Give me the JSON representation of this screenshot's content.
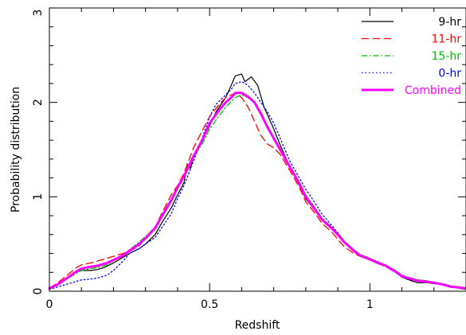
{
  "chart_data": {
    "type": "line",
    "title": "",
    "xlabel": "Redshift",
    "ylabel": "Probability distribution",
    "xlim": [
      0,
      1.3
    ],
    "ylim": [
      0,
      3
    ],
    "xticks": [
      0,
      0.5,
      1
    ],
    "xtick_labels": [
      "0",
      "0.5",
      "1"
    ],
    "yticks": [
      0,
      1,
      2,
      3
    ],
    "ytick_labels": [
      "0",
      "1",
      "2",
      "3"
    ],
    "grid": false,
    "legend_position": "top-right",
    "series": [
      {
        "name": "9-hr",
        "color": "#000000",
        "dash": "solid",
        "points": [
          [
            0,
            0.03
          ],
          [
            0.03,
            0.08
          ],
          [
            0.06,
            0.15
          ],
          [
            0.08,
            0.2
          ],
          [
            0.1,
            0.22
          ],
          [
            0.13,
            0.22
          ],
          [
            0.15,
            0.23
          ],
          [
            0.17,
            0.25
          ],
          [
            0.2,
            0.3
          ],
          [
            0.23,
            0.36
          ],
          [
            0.25,
            0.4
          ],
          [
            0.28,
            0.45
          ],
          [
            0.3,
            0.5
          ],
          [
            0.33,
            0.6
          ],
          [
            0.35,
            0.72
          ],
          [
            0.38,
            0.88
          ],
          [
            0.4,
            1.02
          ],
          [
            0.42,
            1.15
          ],
          [
            0.43,
            1.35
          ],
          [
            0.44,
            1.3
          ],
          [
            0.45,
            1.42
          ],
          [
            0.47,
            1.55
          ],
          [
            0.5,
            1.75
          ],
          [
            0.52,
            1.9
          ],
          [
            0.55,
            2.05
          ],
          [
            0.57,
            2.2
          ],
          [
            0.58,
            2.28
          ],
          [
            0.6,
            2.3
          ],
          [
            0.61,
            2.22
          ],
          [
            0.63,
            2.27
          ],
          [
            0.65,
            2.18
          ],
          [
            0.67,
            1.95
          ],
          [
            0.7,
            1.72
          ],
          [
            0.72,
            1.55
          ],
          [
            0.75,
            1.32
          ],
          [
            0.78,
            1.12
          ],
          [
            0.8,
            0.98
          ],
          [
            0.83,
            0.85
          ],
          [
            0.85,
            0.76
          ],
          [
            0.88,
            0.67
          ],
          [
            0.9,
            0.6
          ],
          [
            0.92,
            0.52
          ],
          [
            0.95,
            0.42
          ],
          [
            0.97,
            0.37
          ],
          [
            1.0,
            0.33
          ],
          [
            1.02,
            0.3
          ],
          [
            1.05,
            0.27
          ],
          [
            1.08,
            0.2
          ],
          [
            1.1,
            0.15
          ],
          [
            1.13,
            0.11
          ],
          [
            1.15,
            0.09
          ],
          [
            1.18,
            0.09
          ],
          [
            1.2,
            0.08
          ],
          [
            1.23,
            0.07
          ],
          [
            1.25,
            0.05
          ],
          [
            1.28,
            0.03
          ],
          [
            1.3,
            0.02
          ]
        ]
      },
      {
        "name": "11-hr",
        "color": "#ff0000",
        "dash": "dashed",
        "points": [
          [
            0,
            0.03
          ],
          [
            0.03,
            0.1
          ],
          [
            0.06,
            0.18
          ],
          [
            0.08,
            0.24
          ],
          [
            0.1,
            0.28
          ],
          [
            0.13,
            0.3
          ],
          [
            0.15,
            0.32
          ],
          [
            0.18,
            0.35
          ],
          [
            0.2,
            0.37
          ],
          [
            0.23,
            0.4
          ],
          [
            0.25,
            0.42
          ],
          [
            0.28,
            0.48
          ],
          [
            0.3,
            0.56
          ],
          [
            0.33,
            0.68
          ],
          [
            0.35,
            0.82
          ],
          [
            0.38,
            1.02
          ],
          [
            0.4,
            1.12
          ],
          [
            0.42,
            1.25
          ],
          [
            0.45,
            1.52
          ],
          [
            0.48,
            1.72
          ],
          [
            0.5,
            1.85
          ],
          [
            0.53,
            1.98
          ],
          [
            0.55,
            2.05
          ],
          [
            0.58,
            2.1
          ],
          [
            0.6,
            2.05
          ],
          [
            0.62,
            1.95
          ],
          [
            0.64,
            1.8
          ],
          [
            0.66,
            1.65
          ],
          [
            0.68,
            1.56
          ],
          [
            0.7,
            1.52
          ],
          [
            0.72,
            1.45
          ],
          [
            0.75,
            1.28
          ],
          [
            0.78,
            1.1
          ],
          [
            0.8,
            0.95
          ],
          [
            0.83,
            0.82
          ],
          [
            0.85,
            0.72
          ],
          [
            0.88,
            0.63
          ],
          [
            0.9,
            0.55
          ],
          [
            0.92,
            0.47
          ],
          [
            0.95,
            0.4
          ],
          [
            0.97,
            0.37
          ],
          [
            1.0,
            0.33
          ],
          [
            1.02,
            0.3
          ],
          [
            1.05,
            0.26
          ],
          [
            1.08,
            0.2
          ],
          [
            1.1,
            0.16
          ],
          [
            1.13,
            0.13
          ],
          [
            1.15,
            0.12
          ],
          [
            1.18,
            0.11
          ],
          [
            1.2,
            0.09
          ],
          [
            1.23,
            0.07
          ],
          [
            1.25,
            0.05
          ],
          [
            1.28,
            0.04
          ],
          [
            1.3,
            0.03
          ]
        ]
      },
      {
        "name": "15-hr",
        "color": "#00c000",
        "dash": "dashdot",
        "points": [
          [
            0,
            0.03
          ],
          [
            0.03,
            0.08
          ],
          [
            0.06,
            0.14
          ],
          [
            0.08,
            0.18
          ],
          [
            0.1,
            0.22
          ],
          [
            0.13,
            0.24
          ],
          [
            0.15,
            0.25
          ],
          [
            0.18,
            0.28
          ],
          [
            0.2,
            0.32
          ],
          [
            0.23,
            0.38
          ],
          [
            0.25,
            0.44
          ],
          [
            0.28,
            0.52
          ],
          [
            0.3,
            0.58
          ],
          [
            0.33,
            0.68
          ],
          [
            0.35,
            0.8
          ],
          [
            0.38,
            0.98
          ],
          [
            0.4,
            1.1
          ],
          [
            0.42,
            1.22
          ],
          [
            0.45,
            1.42
          ],
          [
            0.48,
            1.58
          ],
          [
            0.5,
            1.72
          ],
          [
            0.53,
            1.86
          ],
          [
            0.55,
            1.95
          ],
          [
            0.58,
            2.05
          ],
          [
            0.6,
            2.08
          ],
          [
            0.62,
            2.05
          ],
          [
            0.64,
            2.0
          ],
          [
            0.66,
            1.9
          ],
          [
            0.68,
            1.75
          ],
          [
            0.7,
            1.62
          ],
          [
            0.72,
            1.5
          ],
          [
            0.75,
            1.32
          ],
          [
            0.78,
            1.15
          ],
          [
            0.8,
            1.02
          ],
          [
            0.83,
            0.88
          ],
          [
            0.85,
            0.78
          ],
          [
            0.88,
            0.68
          ],
          [
            0.9,
            0.6
          ],
          [
            0.92,
            0.52
          ],
          [
            0.95,
            0.43
          ],
          [
            0.97,
            0.38
          ],
          [
            1.0,
            0.34
          ],
          [
            1.02,
            0.31
          ],
          [
            1.05,
            0.27
          ],
          [
            1.08,
            0.21
          ],
          [
            1.1,
            0.17
          ],
          [
            1.13,
            0.14
          ],
          [
            1.15,
            0.12
          ],
          [
            1.18,
            0.11
          ],
          [
            1.2,
            0.09
          ],
          [
            1.23,
            0.08
          ],
          [
            1.25,
            0.06
          ],
          [
            1.28,
            0.04
          ],
          [
            1.3,
            0.03
          ]
        ]
      },
      {
        "name": "0-hr",
        "color": "#0000ff",
        "dash": "dotted",
        "points": [
          [
            0,
            0.02
          ],
          [
            0.03,
            0.05
          ],
          [
            0.06,
            0.08
          ],
          [
            0.08,
            0.1
          ],
          [
            0.1,
            0.12
          ],
          [
            0.13,
            0.13
          ],
          [
            0.15,
            0.14
          ],
          [
            0.18,
            0.17
          ],
          [
            0.2,
            0.22
          ],
          [
            0.23,
            0.32
          ],
          [
            0.25,
            0.4
          ],
          [
            0.28,
            0.45
          ],
          [
            0.3,
            0.5
          ],
          [
            0.33,
            0.57
          ],
          [
            0.35,
            0.67
          ],
          [
            0.38,
            0.82
          ],
          [
            0.4,
            0.98
          ],
          [
            0.42,
            1.12
          ],
          [
            0.45,
            1.38
          ],
          [
            0.48,
            1.65
          ],
          [
            0.5,
            1.85
          ],
          [
            0.52,
            1.98
          ],
          [
            0.55,
            2.08
          ],
          [
            0.57,
            2.15
          ],
          [
            0.58,
            2.2
          ],
          [
            0.6,
            2.22
          ],
          [
            0.62,
            2.18
          ],
          [
            0.64,
            2.1
          ],
          [
            0.66,
            2.0
          ],
          [
            0.68,
            1.9
          ],
          [
            0.7,
            1.78
          ],
          [
            0.72,
            1.62
          ],
          [
            0.75,
            1.38
          ],
          [
            0.78,
            1.2
          ],
          [
            0.8,
            1.08
          ],
          [
            0.83,
            0.93
          ],
          [
            0.85,
            0.82
          ],
          [
            0.88,
            0.7
          ],
          [
            0.9,
            0.62
          ],
          [
            0.92,
            0.53
          ],
          [
            0.95,
            0.44
          ],
          [
            0.97,
            0.38
          ],
          [
            1.0,
            0.34
          ],
          [
            1.02,
            0.3
          ],
          [
            1.05,
            0.26
          ],
          [
            1.08,
            0.2
          ],
          [
            1.1,
            0.15
          ],
          [
            1.13,
            0.12
          ],
          [
            1.15,
            0.11
          ],
          [
            1.18,
            0.1
          ],
          [
            1.2,
            0.09
          ],
          [
            1.23,
            0.07
          ],
          [
            1.25,
            0.05
          ],
          [
            1.28,
            0.04
          ],
          [
            1.3,
            0.03
          ]
        ]
      },
      {
        "name": "Combined",
        "color": "#ff00ff",
        "dash": "solid-thick",
        "points": [
          [
            0,
            0.03
          ],
          [
            0.03,
            0.08
          ],
          [
            0.06,
            0.15
          ],
          [
            0.08,
            0.2
          ],
          [
            0.1,
            0.24
          ],
          [
            0.13,
            0.26
          ],
          [
            0.15,
            0.27
          ],
          [
            0.18,
            0.3
          ],
          [
            0.2,
            0.33
          ],
          [
            0.23,
            0.38
          ],
          [
            0.25,
            0.43
          ],
          [
            0.28,
            0.5
          ],
          [
            0.3,
            0.56
          ],
          [
            0.33,
            0.67
          ],
          [
            0.35,
            0.79
          ],
          [
            0.38,
            0.96
          ],
          [
            0.4,
            1.1
          ],
          [
            0.42,
            1.22
          ],
          [
            0.45,
            1.43
          ],
          [
            0.48,
            1.62
          ],
          [
            0.5,
            1.78
          ],
          [
            0.53,
            1.92
          ],
          [
            0.55,
            2.0
          ],
          [
            0.57,
            2.06
          ],
          [
            0.58,
            2.1
          ],
          [
            0.6,
            2.1
          ],
          [
            0.62,
            2.06
          ],
          [
            0.64,
            2.0
          ],
          [
            0.66,
            1.88
          ],
          [
            0.68,
            1.74
          ],
          [
            0.7,
            1.62
          ],
          [
            0.72,
            1.5
          ],
          [
            0.75,
            1.32
          ],
          [
            0.78,
            1.14
          ],
          [
            0.8,
            1.0
          ],
          [
            0.83,
            0.86
          ],
          [
            0.85,
            0.76
          ],
          [
            0.88,
            0.67
          ],
          [
            0.9,
            0.6
          ],
          [
            0.92,
            0.52
          ],
          [
            0.95,
            0.43
          ],
          [
            0.97,
            0.38
          ],
          [
            1.0,
            0.34
          ],
          [
            1.02,
            0.31
          ],
          [
            1.05,
            0.27
          ],
          [
            1.08,
            0.21
          ],
          [
            1.1,
            0.16
          ],
          [
            1.13,
            0.13
          ],
          [
            1.15,
            0.11
          ],
          [
            1.18,
            0.1
          ],
          [
            1.2,
            0.09
          ],
          [
            1.23,
            0.07
          ],
          [
            1.25,
            0.05
          ],
          [
            1.28,
            0.04
          ],
          [
            1.3,
            0.03
          ]
        ]
      }
    ]
  }
}
